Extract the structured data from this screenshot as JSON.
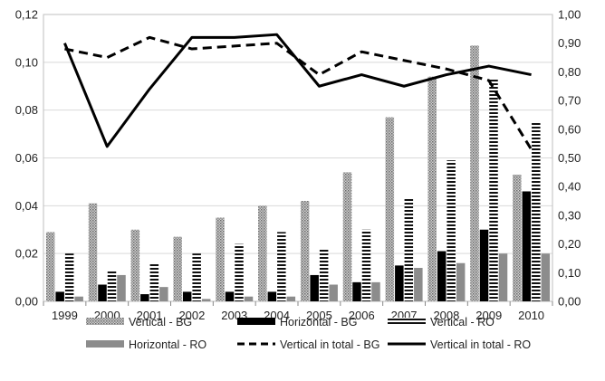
{
  "chart_data": {
    "type": "bar",
    "categories": [
      "1999",
      "2000",
      "2001",
      "2002",
      "2003",
      "2004",
      "2005",
      "2006",
      "2007",
      "2008",
      "2009",
      "2010"
    ],
    "y_left": {
      "ylim": [
        0,
        0.12
      ],
      "ticks": [
        0,
        0.02,
        0.04,
        0.06,
        0.08,
        0.1,
        0.12
      ],
      "tick_labels": [
        "0,00",
        "0,02",
        "0,04",
        "0,06",
        "0,08",
        "0,10",
        "0,12"
      ]
    },
    "y_right": {
      "ylim": [
        0,
        1.0
      ],
      "ticks": [
        0,
        0.1,
        0.2,
        0.3,
        0.4,
        0.5,
        0.6,
        0.7,
        0.8,
        0.9,
        1.0
      ],
      "tick_labels": [
        "0,00",
        "0,10",
        "0,20",
        "0,30",
        "0,40",
        "0,50",
        "0,60",
        "0,70",
        "0,80",
        "0,90",
        "1,00"
      ]
    },
    "grid": "horizontal",
    "legend_position": "bottom",
    "series": [
      {
        "name": "Vertical - BG",
        "kind": "bar",
        "axis": "left",
        "style": "dotted-gray",
        "values": [
          0.029,
          0.041,
          0.03,
          0.027,
          0.035,
          0.04,
          0.042,
          0.054,
          0.077,
          0.094,
          0.107,
          0.053
        ]
      },
      {
        "name": "Horizontal - BG",
        "kind": "bar",
        "axis": "left",
        "style": "solid-black",
        "values": [
          0.004,
          0.007,
          0.003,
          0.004,
          0.004,
          0.004,
          0.011,
          0.008,
          0.015,
          0.021,
          0.03,
          0.046
        ]
      },
      {
        "name": "Vertical - RO",
        "kind": "bar",
        "axis": "left",
        "style": "horizontal-stripes",
        "values": [
          0.02,
          0.013,
          0.016,
          0.02,
          0.024,
          0.029,
          0.022,
          0.03,
          0.043,
          0.059,
          0.093,
          0.075
        ]
      },
      {
        "name": "Horizontal - RO",
        "kind": "bar",
        "axis": "left",
        "style": "solid-gray",
        "values": [
          0.002,
          0.011,
          0.006,
          0.001,
          0.002,
          0.002,
          0.007,
          0.008,
          0.014,
          0.016,
          0.02,
          0.02
        ]
      },
      {
        "name": "Vertical in total - BG",
        "kind": "line",
        "axis": "right",
        "style": "dashed",
        "values": [
          0.88,
          0.85,
          0.92,
          0.88,
          0.89,
          0.9,
          0.79,
          0.87,
          0.84,
          0.81,
          0.77,
          0.53
        ]
      },
      {
        "name": "Vertical in total - RO",
        "kind": "line",
        "axis": "right",
        "style": "solid",
        "values": [
          0.9,
          0.54,
          0.74,
          0.92,
          0.92,
          0.93,
          0.75,
          0.79,
          0.75,
          0.79,
          0.82,
          0.79
        ]
      }
    ],
    "legend_rows": [
      [
        "Vertical - BG",
        "Horizontal - BG",
        "Vertical - RO"
      ],
      [
        "Horizontal - RO",
        "Vertical in total - BG",
        "Vertical in total - RO"
      ]
    ]
  }
}
